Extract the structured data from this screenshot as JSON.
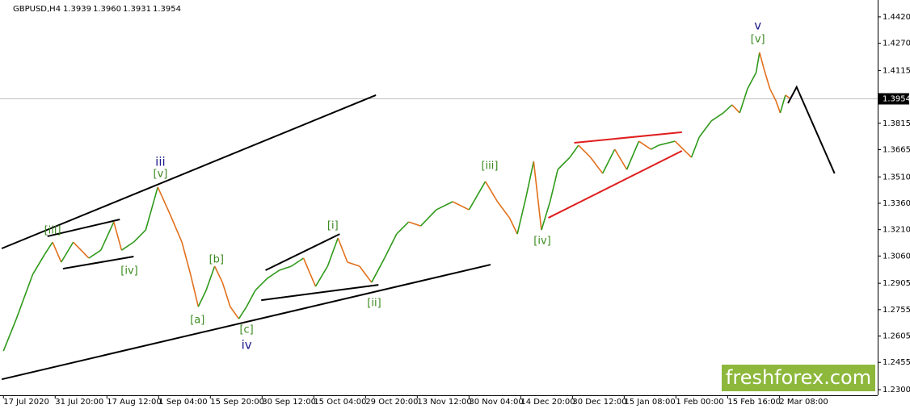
{
  "chart_data": {
    "type": "line",
    "title": "GBPUSD,H4",
    "ohlc": [
      {
        "value": 1.3939,
        "label": "1.3939"
      },
      {
        "value": 1.396,
        "label": "1.3960"
      },
      {
        "value": 1.3931,
        "label": "1.3931"
      },
      {
        "value": 1.3954,
        "label": "1.3954"
      }
    ],
    "last_price": {
      "value": 1.3954,
      "label": "1.3954"
    },
    "up_color": "#2f9a1a",
    "down_color": "#e2701c",
    "x": [
      0,
      15,
      34,
      48,
      57,
      67,
      81,
      99,
      113,
      128,
      137,
      151,
      165,
      179,
      193,
      207,
      217,
      226,
      235,
      245,
      254,
      263,
      273,
      282,
      292,
      306,
      320,
      334,
      348,
      362,
      376,
      388,
      399,
      413,
      427,
      442,
      456,
      470,
      484,
      502,
      521,
      540,
      559,
      573,
      587,
      596,
      606,
      615,
      624,
      634,
      643,
      657,
      667,
      681,
      695,
      709,
      723,
      737,
      751,
      760,
      779,
      798,
      807,
      821,
      835,
      845,
      854,
      863,
      873,
      877,
      882,
      889,
      896,
      901,
      907,
      913
    ],
    "values": [
      1.252,
      1.2703,
      1.2956,
      1.3071,
      1.3139,
      1.3025,
      1.3139,
      1.3048,
      1.3093,
      1.3254,
      1.3093,
      1.3139,
      1.3208,
      1.3452,
      1.33,
      1.3139,
      1.2956,
      1.2772,
      1.2864,
      1.3002,
      1.291,
      1.2772,
      1.2703,
      1.2772,
      1.2864,
      1.2933,
      1.2979,
      1.3002,
      1.3048,
      1.2887,
      1.3002,
      1.3162,
      1.3025,
      1.3002,
      1.291,
      1.3048,
      1.3185,
      1.3254,
      1.3231,
      1.3323,
      1.3369,
      1.3323,
      1.3484,
      1.3369,
      1.3277,
      1.3185,
      1.3392,
      1.3598,
      1.3208,
      1.3369,
      1.3552,
      1.3621,
      1.369,
      1.3621,
      1.353,
      1.3667,
      1.3552,
      1.3713,
      1.3667,
      1.369,
      1.3713,
      1.3621,
      1.3736,
      1.3828,
      1.3874,
      1.392,
      1.3874,
      1.4011,
      1.4103,
      1.4218,
      1.4126,
      1.4011,
      1.3943,
      1.3874,
      1.3975,
      1.3954
    ],
    "xlim": [
      -4,
      1014
    ],
    "ylim": [
      1.2268,
      1.4516
    ],
    "xticks": [
      {
        "value": 0,
        "label": "17 Jul 2020"
      },
      {
        "value": 60,
        "label": "31 Jul 20:00"
      },
      {
        "value": 120,
        "label": "17 Aug 12:00"
      },
      {
        "value": 180,
        "label": "1 Sep 04:00"
      },
      {
        "value": 240,
        "label": "15 Sep 20:00"
      },
      {
        "value": 300,
        "label": "30 Sep 12:00"
      },
      {
        "value": 360,
        "label": "15 Oct 04:00"
      },
      {
        "value": 420,
        "label": "29 Oct 20:00"
      },
      {
        "value": 480,
        "label": "13 Nov 12:00"
      },
      {
        "value": 540,
        "label": "30 Nov 04:00"
      },
      {
        "value": 600,
        "label": "14 Dec 20:00"
      },
      {
        "value": 660,
        "label": "30 Dec 12:00"
      },
      {
        "value": 720,
        "label": "15 Jan 08:00"
      },
      {
        "value": 780,
        "label": "1 Feb 00:00"
      },
      {
        "value": 840,
        "label": "15 Feb 16:00"
      },
      {
        "value": 900,
        "label": "2 Mar 08:00"
      }
    ],
    "yticks": [
      {
        "value": 1.442,
        "label": "1.4420"
      },
      {
        "value": 1.427,
        "label": "1.4270"
      },
      {
        "value": 1.4115,
        "label": "1.4115"
      },
      {
        "value": 1.3815,
        "label": "1.3815"
      },
      {
        "value": 1.3665,
        "label": "1.3665"
      },
      {
        "value": 1.351,
        "label": "1.3510"
      },
      {
        "value": 1.336,
        "label": "1.3360"
      },
      {
        "value": 1.321,
        "label": "1.3210"
      },
      {
        "value": 1.306,
        "label": "1.3060"
      },
      {
        "value": 1.2905,
        "label": "1.2905"
      },
      {
        "value": 1.2755,
        "label": "1.2755"
      },
      {
        "value": 1.2605,
        "label": "1.2605"
      },
      {
        "value": 1.2455,
        "label": "1.2455"
      },
      {
        "value": 1.23,
        "label": "1.2300"
      }
    ],
    "lines": [
      {
        "color": "#000000",
        "x": [
          -2,
          432
        ],
        "values": [
          1.3103,
          1.3975
        ]
      },
      {
        "color": "#000000",
        "x": [
          -2,
          565
        ],
        "values": [
          1.2359,
          1.3011
        ]
      },
      {
        "color": "#000000",
        "x": [
          51,
          135
        ],
        "values": [
          1.3172,
          1.3268
        ]
      },
      {
        "color": "#000000",
        "x": [
          69,
          151
        ],
        "values": [
          1.2988,
          1.3057
        ]
      },
      {
        "color": "#000000",
        "x": [
          304,
          390
        ],
        "values": [
          1.2979,
          1.3185
        ]
      },
      {
        "color": "#000000",
        "x": [
          299,
          435
        ],
        "values": [
          1.2809,
          1.2896
        ]
      },
      {
        "color": "#e01e1e",
        "x": [
          662,
          787
        ],
        "values": [
          1.3704,
          1.3764
        ]
      },
      {
        "color": "#e01e1e",
        "x": [
          632,
          787
        ],
        "values": [
          1.3277,
          1.3658
        ]
      }
    ],
    "projection": {
      "color": "#000000",
      "x": [
        910,
        920,
        964
      ],
      "values": [
        1.3929,
        1.4021,
        1.353
      ]
    },
    "annotations": [
      {
        "text": "[iii]",
        "x": 57,
        "y": 1.3204,
        "color": "#3a8a1e"
      },
      {
        "text": "[iv]",
        "x": 146,
        "y": 1.2974,
        "color": "#3a8a1e"
      },
      {
        "text": "iii",
        "x": 182,
        "y": 1.3594,
        "color": "#1a1a8c"
      },
      {
        "text": "[v]",
        "x": 182,
        "y": 1.3525,
        "color": "#3a8a1e"
      },
      {
        "text": "[b]",
        "x": 247,
        "y": 1.3038,
        "color": "#3a8a1e"
      },
      {
        "text": "[a]",
        "x": 225,
        "y": 1.2694,
        "color": "#3a8a1e"
      },
      {
        "text": "[c]",
        "x": 282,
        "y": 1.2639,
        "color": "#3a8a1e"
      },
      {
        "text": "iv",
        "x": 282,
        "y": 1.2552,
        "color": "#1a1a8c"
      },
      {
        "text": "[i]",
        "x": 382,
        "y": 1.3231,
        "color": "#3a8a1e"
      },
      {
        "text": "[ii]",
        "x": 430,
        "y": 1.2791,
        "color": "#3a8a1e"
      },
      {
        "text": "[iii]",
        "x": 564,
        "y": 1.3571,
        "color": "#3a8a1e"
      },
      {
        "text": "[iv]",
        "x": 625,
        "y": 1.3144,
        "color": "#3a8a1e"
      },
      {
        "text": "v",
        "x": 875,
        "y": 1.437,
        "color": "#1a1a8c"
      },
      {
        "text": "[v]",
        "x": 875,
        "y": 1.4291,
        "color": "#3a8a1e"
      }
    ],
    "watermark": "freshforex.com",
    "watermark_color": "#8db83c"
  }
}
